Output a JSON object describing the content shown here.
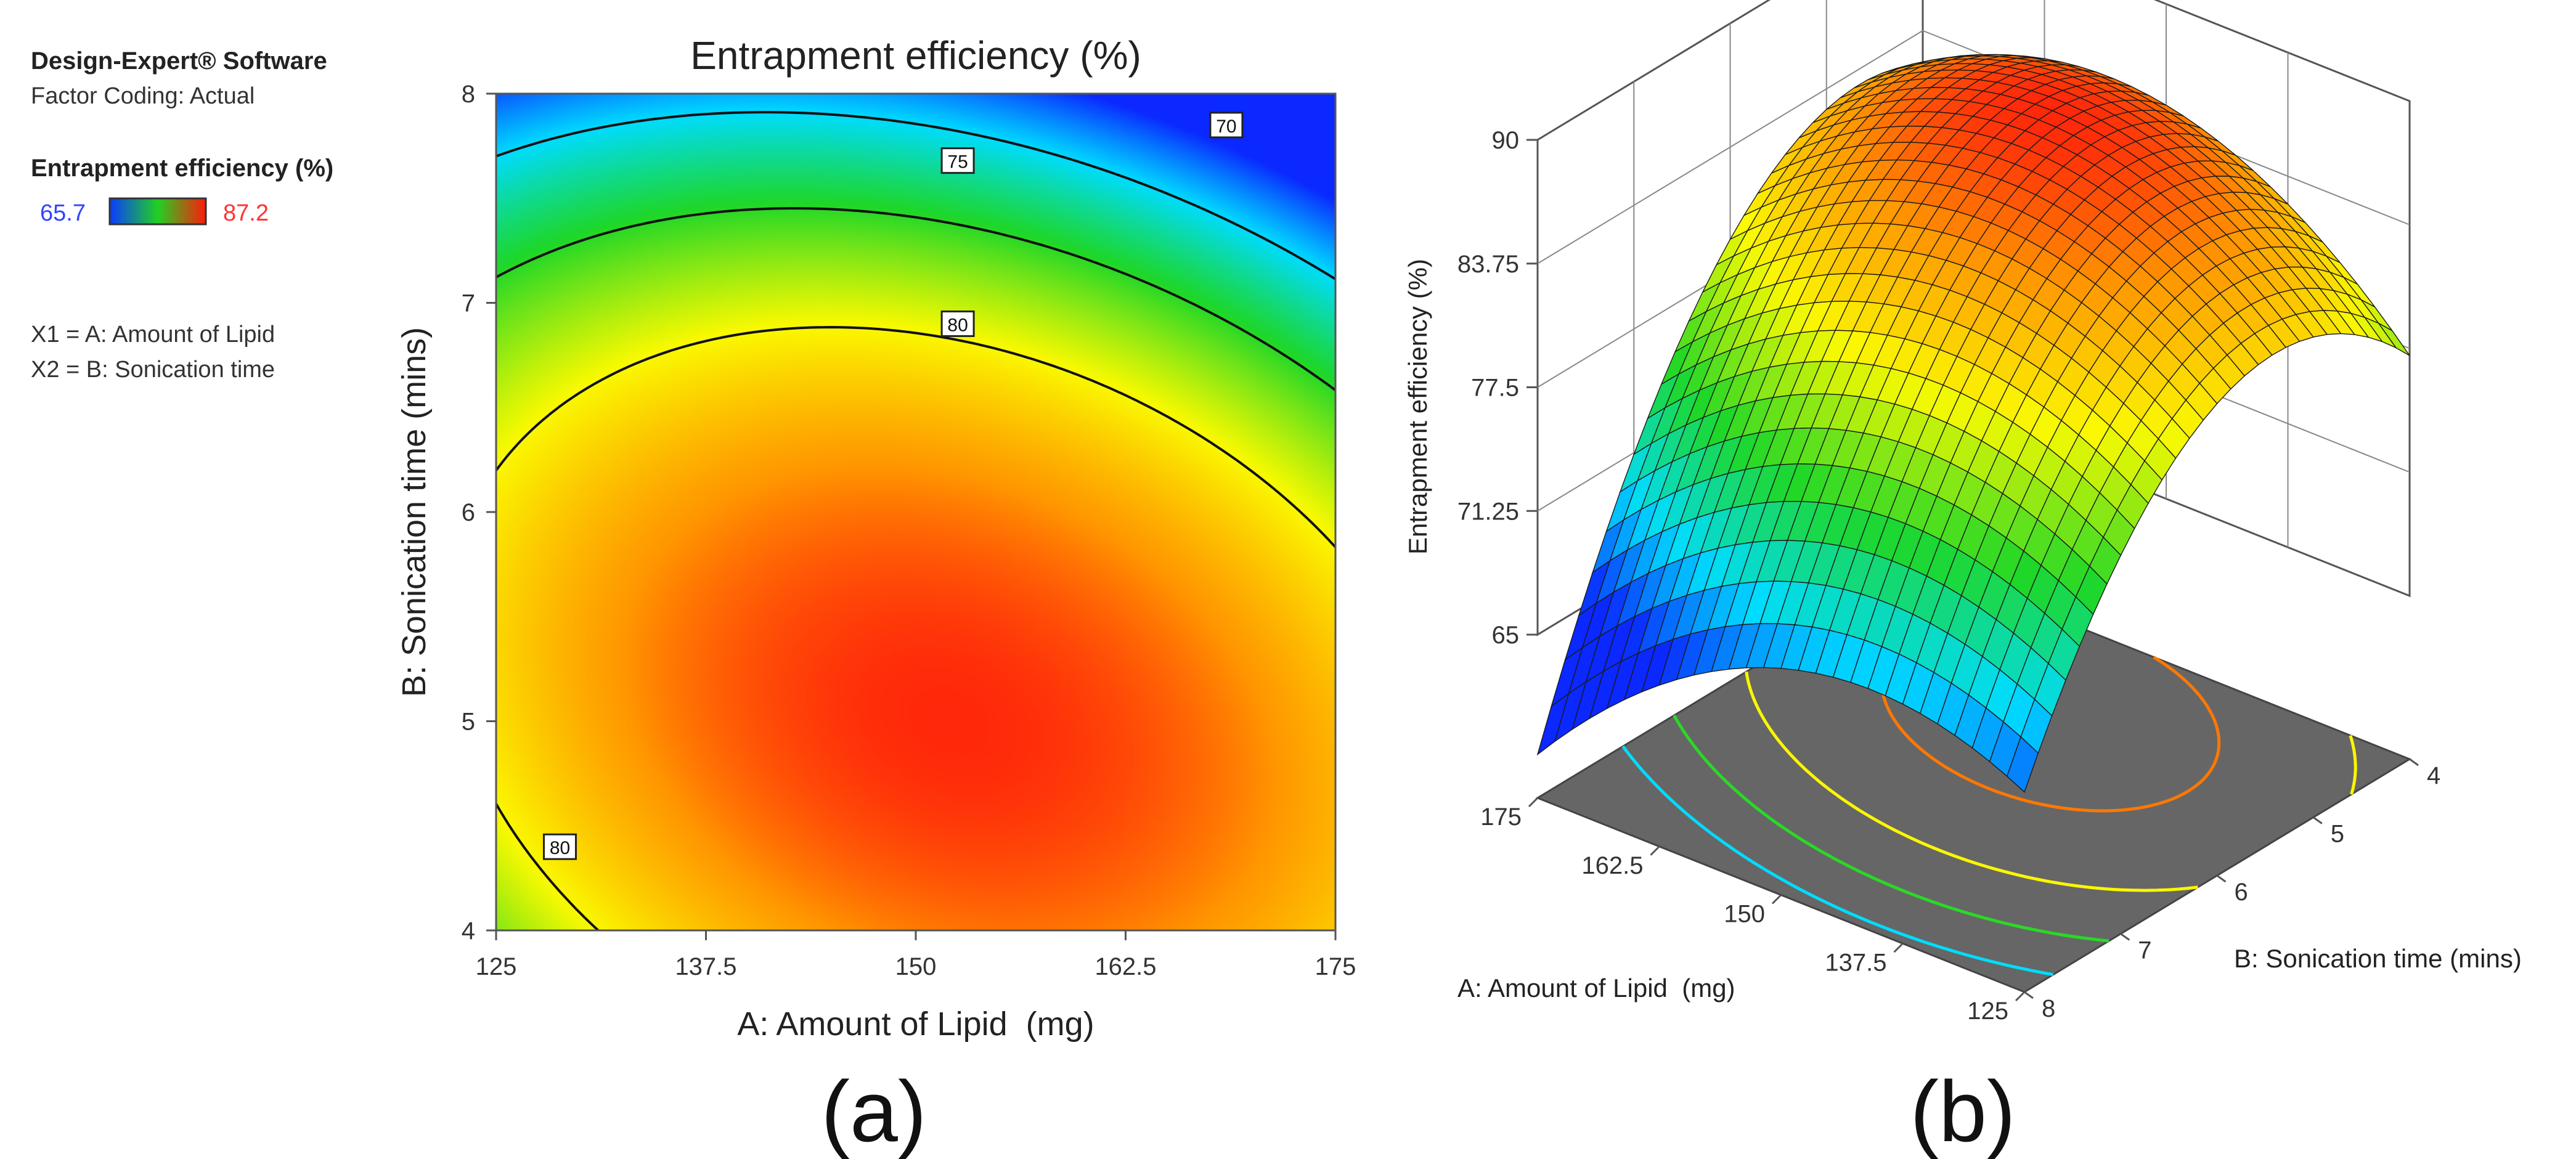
{
  "sidebar": {
    "software": "Design-Expert® Software",
    "coding": "Factor Coding: Actual",
    "response_label": "Entrapment efficiency (%)",
    "color_min": "65.7",
    "color_max": "87.2",
    "x1": "X1 = A: Amount of Lipid",
    "x2": "X2 = B: Sonication time"
  },
  "panel_labels": {
    "a": "(a)",
    "b": "(b)"
  },
  "colors": {
    "low": "#0a3cff",
    "mid": "#22d022",
    "high": "#ff1a0a",
    "contour_line": "#111111",
    "floor": "#666666",
    "label_low": "#3344ff",
    "label_high": "#ff3333"
  },
  "chart_data": [
    {
      "type": "contour",
      "title": "Entrapment efficiency (%)",
      "xlabel": "A: Amount of Lipid  (mg)",
      "ylabel": "B: Sonication time (mins)",
      "xlim": [
        125,
        175
      ],
      "ylim": [
        4,
        8
      ],
      "xticks": [
        "125",
        "137.5",
        "150",
        "162.5",
        "175"
      ],
      "yticks": [
        "4",
        "5",
        "6",
        "7",
        "8"
      ],
      "color_range": [
        65.7,
        87.2
      ],
      "contour_levels": [
        70,
        75,
        80
      ],
      "contour_labels": [
        {
          "text": "70",
          "x": 168.5,
          "y": 7.85
        },
        {
          "text": "75",
          "x": 152.5,
          "y": 7.68
        },
        {
          "text": "80",
          "x": 152.5,
          "y": 6.9
        },
        {
          "text": "80",
          "x": 128.8,
          "y": 4.4
        }
      ],
      "optimum": {
        "A": 152,
        "B": 5.0,
        "value": 87.2
      }
    },
    {
      "type": "surface",
      "zlabel": "Entrapment efficiency (%)",
      "xlabel": "A: Amount of Lipid  (mg)",
      "ylabel": "B: Sonication time (mins)",
      "zticks": [
        "65",
        "71.25",
        "77.5",
        "83.75",
        "90"
      ],
      "zlim": [
        65,
        90
      ],
      "xticks": [
        "125",
        "137.5",
        "150",
        "162.5",
        "175"
      ],
      "yticks": [
        "4",
        "5",
        "6",
        "7",
        "8"
      ],
      "xlim": [
        125,
        175
      ],
      "ylim": [
        4,
        8
      ]
    }
  ]
}
